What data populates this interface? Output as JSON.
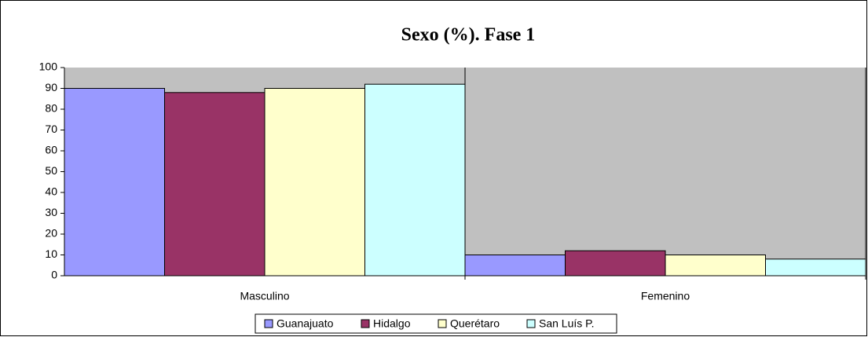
{
  "chart_data": {
    "type": "bar",
    "title": "Sexo (%). Fase 1",
    "categories": [
      "Masculino",
      "Femenino"
    ],
    "series": [
      {
        "name": "Guanajuato",
        "color": "#9999ff",
        "values": [
          90,
          10
        ]
      },
      {
        "name": "Hidalgo",
        "color": "#993366",
        "values": [
          88,
          12
        ]
      },
      {
        "name": "Querétaro",
        "color": "#ffffcc",
        "values": [
          90,
          10
        ]
      },
      {
        "name": "San Luís P.",
        "color": "#ccffff",
        "values": [
          92,
          8
        ]
      }
    ],
    "ylim": [
      0,
      100
    ],
    "yticks": [
      0,
      10,
      20,
      30,
      40,
      50,
      60,
      70,
      80,
      90,
      100
    ],
    "grid": false,
    "legend": "bottom",
    "plot_background": "#c0c0c0"
  }
}
